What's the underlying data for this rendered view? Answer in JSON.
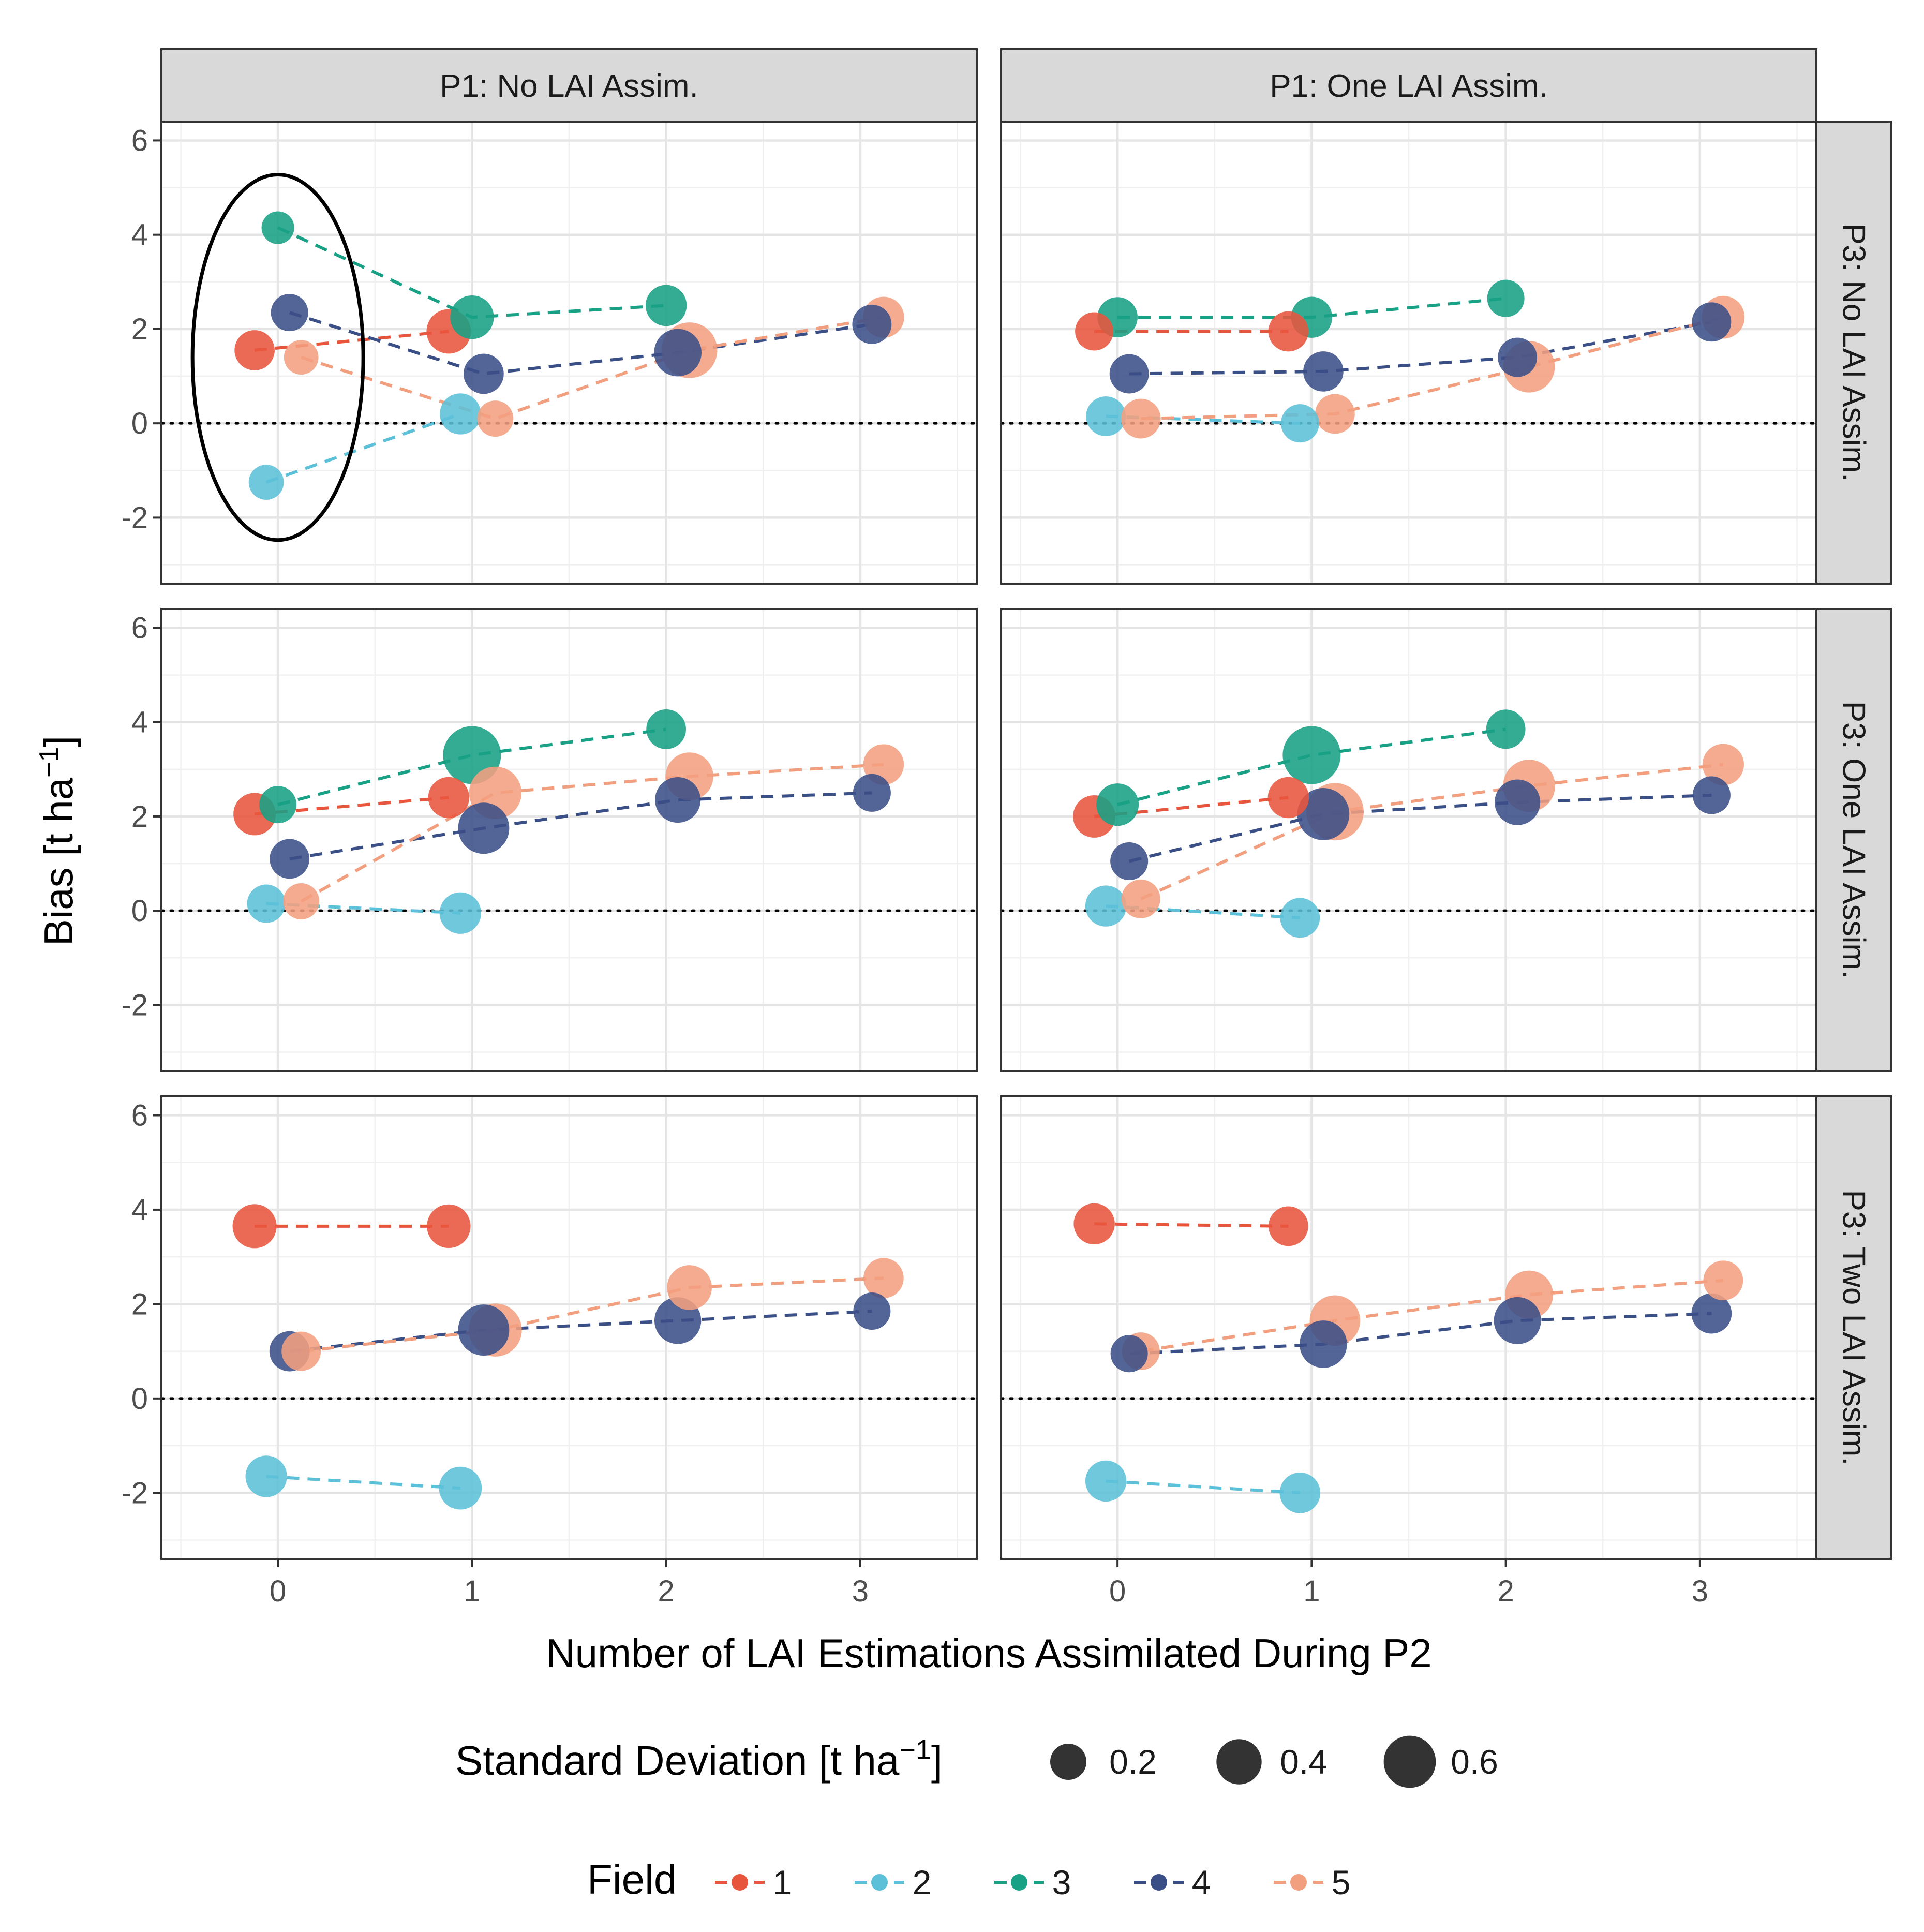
{
  "chart_data": {
    "type": "scatter",
    "xlabel": "Number of LAI Estimations Assimilated During P2",
    "ylabel_main": "Bias [t ha",
    "ylabel_sup": "−1",
    "ylabel_close": "]",
    "xlim": [
      -0.6,
      3.6
    ],
    "ylim": [
      -3.4,
      6.4
    ],
    "x_ticks": [
      0,
      1,
      2,
      3
    ],
    "y_ticks": [
      -2,
      0,
      2,
      4,
      6
    ],
    "x_tick_labels": [
      "0",
      "1",
      "2",
      "3"
    ],
    "y_tick_labels": [
      "-2",
      "0",
      "2",
      "4",
      "6"
    ],
    "reference_line": 0,
    "column_labels": [
      "P1: No LAI Assim.",
      "P1: One LAI Assim."
    ],
    "row_labels": [
      "P3: No LAI Assim.",
      "P3: One LAI Assim.",
      "P3: Two LAI Assim."
    ],
    "fields": [
      {
        "name": "1",
        "color": "#e8553d",
        "dx": -0.12
      },
      {
        "name": "2",
        "color": "#5cc0d8",
        "dx": -0.06
      },
      {
        "name": "3",
        "color": "#18a185",
        "dx": 0.0
      },
      {
        "name": "4",
        "color": "#3b4f87",
        "dx": 0.06
      },
      {
        "name": "5",
        "color": "#f29f80",
        "dx": 0.12
      }
    ],
    "panels": [
      {
        "row": 0,
        "col": 0,
        "highlight_ellipse": true,
        "series": [
          {
            "field": "1",
            "points": [
              {
                "x": 0,
                "y": 1.55,
                "sd": 0.28
              },
              {
                "x": 1,
                "y": 1.95,
                "sd": 0.38
              }
            ]
          },
          {
            "field": "2",
            "points": [
              {
                "x": 0,
                "y": -1.25,
                "sd": 0.18
              },
              {
                "x": 1,
                "y": 0.2,
                "sd": 0.3
              }
            ]
          },
          {
            "field": "3",
            "points": [
              {
                "x": 0,
                "y": 4.15,
                "sd": 0.14
              },
              {
                "x": 1,
                "y": 2.25,
                "sd": 0.36
              },
              {
                "x": 2,
                "y": 2.5,
                "sd": 0.3
              }
            ]
          },
          {
            "field": "4",
            "points": [
              {
                "x": 0,
                "y": 2.35,
                "sd": 0.22
              },
              {
                "x": 1,
                "y": 1.05,
                "sd": 0.28
              },
              {
                "x": 2,
                "y": 1.5,
                "sd": 0.46
              },
              {
                "x": 3,
                "y": 2.1,
                "sd": 0.26
              }
            ]
          },
          {
            "field": "5",
            "points": [
              {
                "x": 0,
                "y": 1.4,
                "sd": 0.17
              },
              {
                "x": 1,
                "y": 0.1,
                "sd": 0.2
              },
              {
                "x": 2,
                "y": 1.55,
                "sd": 0.72
              },
              {
                "x": 3,
                "y": 2.25,
                "sd": 0.3
              }
            ]
          }
        ]
      },
      {
        "row": 0,
        "col": 1,
        "highlight_ellipse": false,
        "series": [
          {
            "field": "1",
            "points": [
              {
                "x": 0,
                "y": 1.95,
                "sd": 0.24
              },
              {
                "x": 1,
                "y": 1.95,
                "sd": 0.28
              }
            ]
          },
          {
            "field": "2",
            "points": [
              {
                "x": 0,
                "y": 0.15,
                "sd": 0.27
              },
              {
                "x": 1,
                "y": 0.0,
                "sd": 0.24
              }
            ]
          },
          {
            "field": "3",
            "points": [
              {
                "x": 0,
                "y": 2.25,
                "sd": 0.28
              },
              {
                "x": 1,
                "y": 2.25,
                "sd": 0.3
              },
              {
                "x": 2,
                "y": 2.65,
                "sd": 0.22
              }
            ]
          },
          {
            "field": "4",
            "points": [
              {
                "x": 0,
                "y": 1.05,
                "sd": 0.26
              },
              {
                "x": 1,
                "y": 1.1,
                "sd": 0.28
              },
              {
                "x": 2,
                "y": 1.4,
                "sd": 0.26
              },
              {
                "x": 3,
                "y": 2.15,
                "sd": 0.26
              }
            ]
          },
          {
            "field": "5",
            "points": [
              {
                "x": 0,
                "y": 0.1,
                "sd": 0.27
              },
              {
                "x": 1,
                "y": 0.2,
                "sd": 0.27
              },
              {
                "x": 2,
                "y": 1.2,
                "sd": 0.58
              },
              {
                "x": 3,
                "y": 2.25,
                "sd": 0.34
              }
            ]
          }
        ]
      },
      {
        "row": 1,
        "col": 0,
        "highlight_ellipse": false,
        "series": [
          {
            "field": "1",
            "points": [
              {
                "x": 0,
                "y": 2.05,
                "sd": 0.33
              },
              {
                "x": 1,
                "y": 2.4,
                "sd": 0.3
              }
            ]
          },
          {
            "field": "2",
            "points": [
              {
                "x": 0,
                "y": 0.15,
                "sd": 0.24
              },
              {
                "x": 1,
                "y": -0.05,
                "sd": 0.31
              }
            ]
          },
          {
            "field": "3",
            "points": [
              {
                "x": 0,
                "y": 2.25,
                "sd": 0.22
              },
              {
                "x": 1,
                "y": 3.3,
                "sd": 0.8
              },
              {
                "x": 2,
                "y": 3.85,
                "sd": 0.27
              }
            ]
          },
          {
            "field": "4",
            "points": [
              {
                "x": 0,
                "y": 1.1,
                "sd": 0.27
              },
              {
                "x": 1,
                "y": 1.75,
                "sd": 0.57
              },
              {
                "x": 2,
                "y": 2.35,
                "sd": 0.41
              },
              {
                "x": 3,
                "y": 2.5,
                "sd": 0.23
              }
            ]
          },
          {
            "field": "5",
            "points": [
              {
                "x": 0,
                "y": 0.2,
                "sd": 0.2
              },
              {
                "x": 1,
                "y": 2.5,
                "sd": 0.61
              },
              {
                "x": 2,
                "y": 2.85,
                "sd": 0.47
              },
              {
                "x": 3,
                "y": 3.1,
                "sd": 0.29
              }
            ]
          }
        ]
      },
      {
        "row": 1,
        "col": 1,
        "highlight_ellipse": false,
        "series": [
          {
            "field": "1",
            "points": [
              {
                "x": 0,
                "y": 2.0,
                "sd": 0.33
              },
              {
                "x": 1,
                "y": 2.4,
                "sd": 0.3
              }
            ]
          },
          {
            "field": "2",
            "points": [
              {
                "x": 0,
                "y": 0.1,
                "sd": 0.3
              },
              {
                "x": 1,
                "y": -0.15,
                "sd": 0.27
              }
            ]
          },
          {
            "field": "3",
            "points": [
              {
                "x": 0,
                "y": 2.25,
                "sd": 0.33
              },
              {
                "x": 1,
                "y": 3.3,
                "sd": 0.8
              },
              {
                "x": 2,
                "y": 3.85,
                "sd": 0.26
              }
            ]
          },
          {
            "field": "4",
            "points": [
              {
                "x": 0,
                "y": 1.05,
                "sd": 0.23
              },
              {
                "x": 1,
                "y": 2.05,
                "sd": 0.6
              },
              {
                "x": 2,
                "y": 2.3,
                "sd": 0.41
              },
              {
                "x": 3,
                "y": 2.45,
                "sd": 0.23
              }
            ]
          },
          {
            "field": "5",
            "points": [
              {
                "x": 0,
                "y": 0.25,
                "sd": 0.25
              },
              {
                "x": 1,
                "y": 2.1,
                "sd": 0.78
              },
              {
                "x": 2,
                "y": 2.65,
                "sd": 0.6
              },
              {
                "x": 3,
                "y": 3.1,
                "sd": 0.31
              }
            ]
          }
        ]
      },
      {
        "row": 2,
        "col": 0,
        "highlight_ellipse": false,
        "series": [
          {
            "field": "1",
            "points": [
              {
                "x": 0,
                "y": 3.65,
                "sd": 0.37
              },
              {
                "x": 1,
                "y": 3.65,
                "sd": 0.36
              }
            ]
          },
          {
            "field": "2",
            "points": [
              {
                "x": 0,
                "y": -1.65,
                "sd": 0.31
              },
              {
                "x": 1,
                "y": -1.9,
                "sd": 0.34
              }
            ]
          },
          {
            "field": "4",
            "points": [
              {
                "x": 0,
                "y": 1.0,
                "sd": 0.28
              },
              {
                "x": 1,
                "y": 1.45,
                "sd": 0.57
              },
              {
                "x": 2,
                "y": 1.65,
                "sd": 0.44
              },
              {
                "x": 3,
                "y": 1.85,
                "sd": 0.22
              }
            ]
          },
          {
            "field": "5",
            "points": [
              {
                "x": 0,
                "y": 1.0,
                "sd": 0.26
              },
              {
                "x": 1,
                "y": 1.45,
                "sd": 0.63
              },
              {
                "x": 2,
                "y": 2.35,
                "sd": 0.39
              },
              {
                "x": 3,
                "y": 2.55,
                "sd": 0.28
              }
            ]
          }
        ]
      },
      {
        "row": 2,
        "col": 1,
        "highlight_ellipse": false,
        "series": [
          {
            "field": "1",
            "points": [
              {
                "x": 0,
                "y": 3.7,
                "sd": 0.3
              },
              {
                "x": 1,
                "y": 3.65,
                "sd": 0.27
              }
            ]
          },
          {
            "field": "2",
            "points": [
              {
                "x": 0,
                "y": -1.75,
                "sd": 0.3
              },
              {
                "x": 1,
                "y": -2.0,
                "sd": 0.29
              }
            ]
          },
          {
            "field": "4",
            "points": [
              {
                "x": 0,
                "y": 0.95,
                "sd": 0.22
              },
              {
                "x": 1,
                "y": 1.15,
                "sd": 0.46
              },
              {
                "x": 2,
                "y": 1.65,
                "sd": 0.45
              },
              {
                "x": 3,
                "y": 1.8,
                "sd": 0.28
              }
            ]
          },
          {
            "field": "5",
            "points": [
              {
                "x": 0,
                "y": 1.0,
                "sd": 0.23
              },
              {
                "x": 1,
                "y": 1.65,
                "sd": 0.55
              },
              {
                "x": 2,
                "y": 2.2,
                "sd": 0.48
              },
              {
                "x": 3,
                "y": 2.5,
                "sd": 0.27
              }
            ]
          }
        ]
      }
    ],
    "legend_size": {
      "title_main": "Standard Deviation [t ha",
      "title_sup": "−1",
      "title_close": "]",
      "entries": [
        {
          "label": "0.2",
          "value": 0.2
        },
        {
          "label": "0.4",
          "value": 0.4
        },
        {
          "label": "0.6",
          "value": 0.6
        }
      ]
    },
    "legend_color": {
      "title": "Field",
      "entries": [
        "1",
        "2",
        "3",
        "4",
        "5"
      ]
    }
  }
}
